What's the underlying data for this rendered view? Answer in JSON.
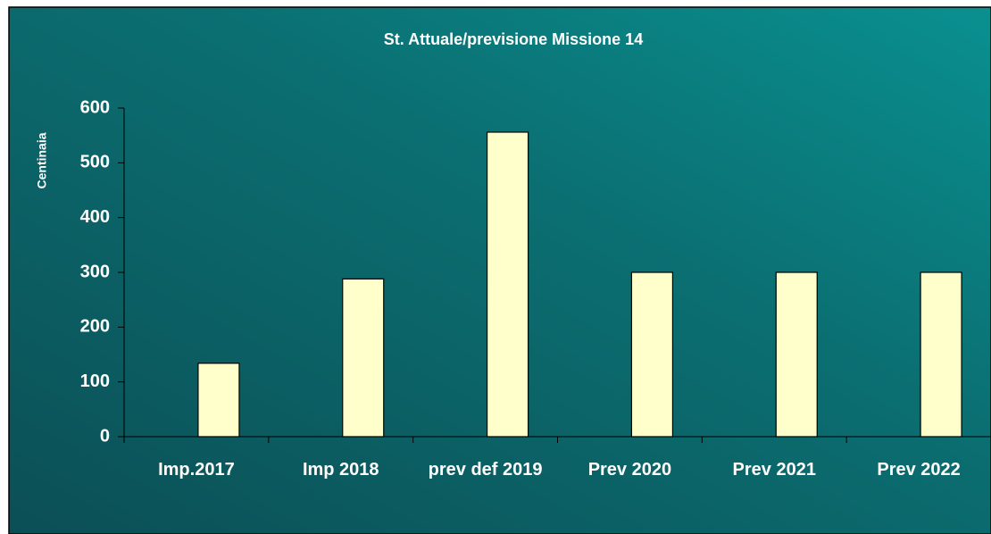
{
  "chart_data": {
    "type": "bar",
    "title": "St. Attuale/previsione Missione 14",
    "y_label": "Centinaia",
    "categories": [
      "Imp.2017",
      "Imp 2018",
      "prev def 2019",
      "Prev 2020",
      "Prev 2021",
      "Prev 2022"
    ],
    "values": [
      134,
      288,
      556,
      300,
      300,
      300
    ],
    "color": "#ffffcc",
    "ylim": [
      0,
      600
    ],
    "yticks": [
      0,
      100,
      200,
      300,
      400,
      500,
      600
    ],
    "grid": false
  }
}
